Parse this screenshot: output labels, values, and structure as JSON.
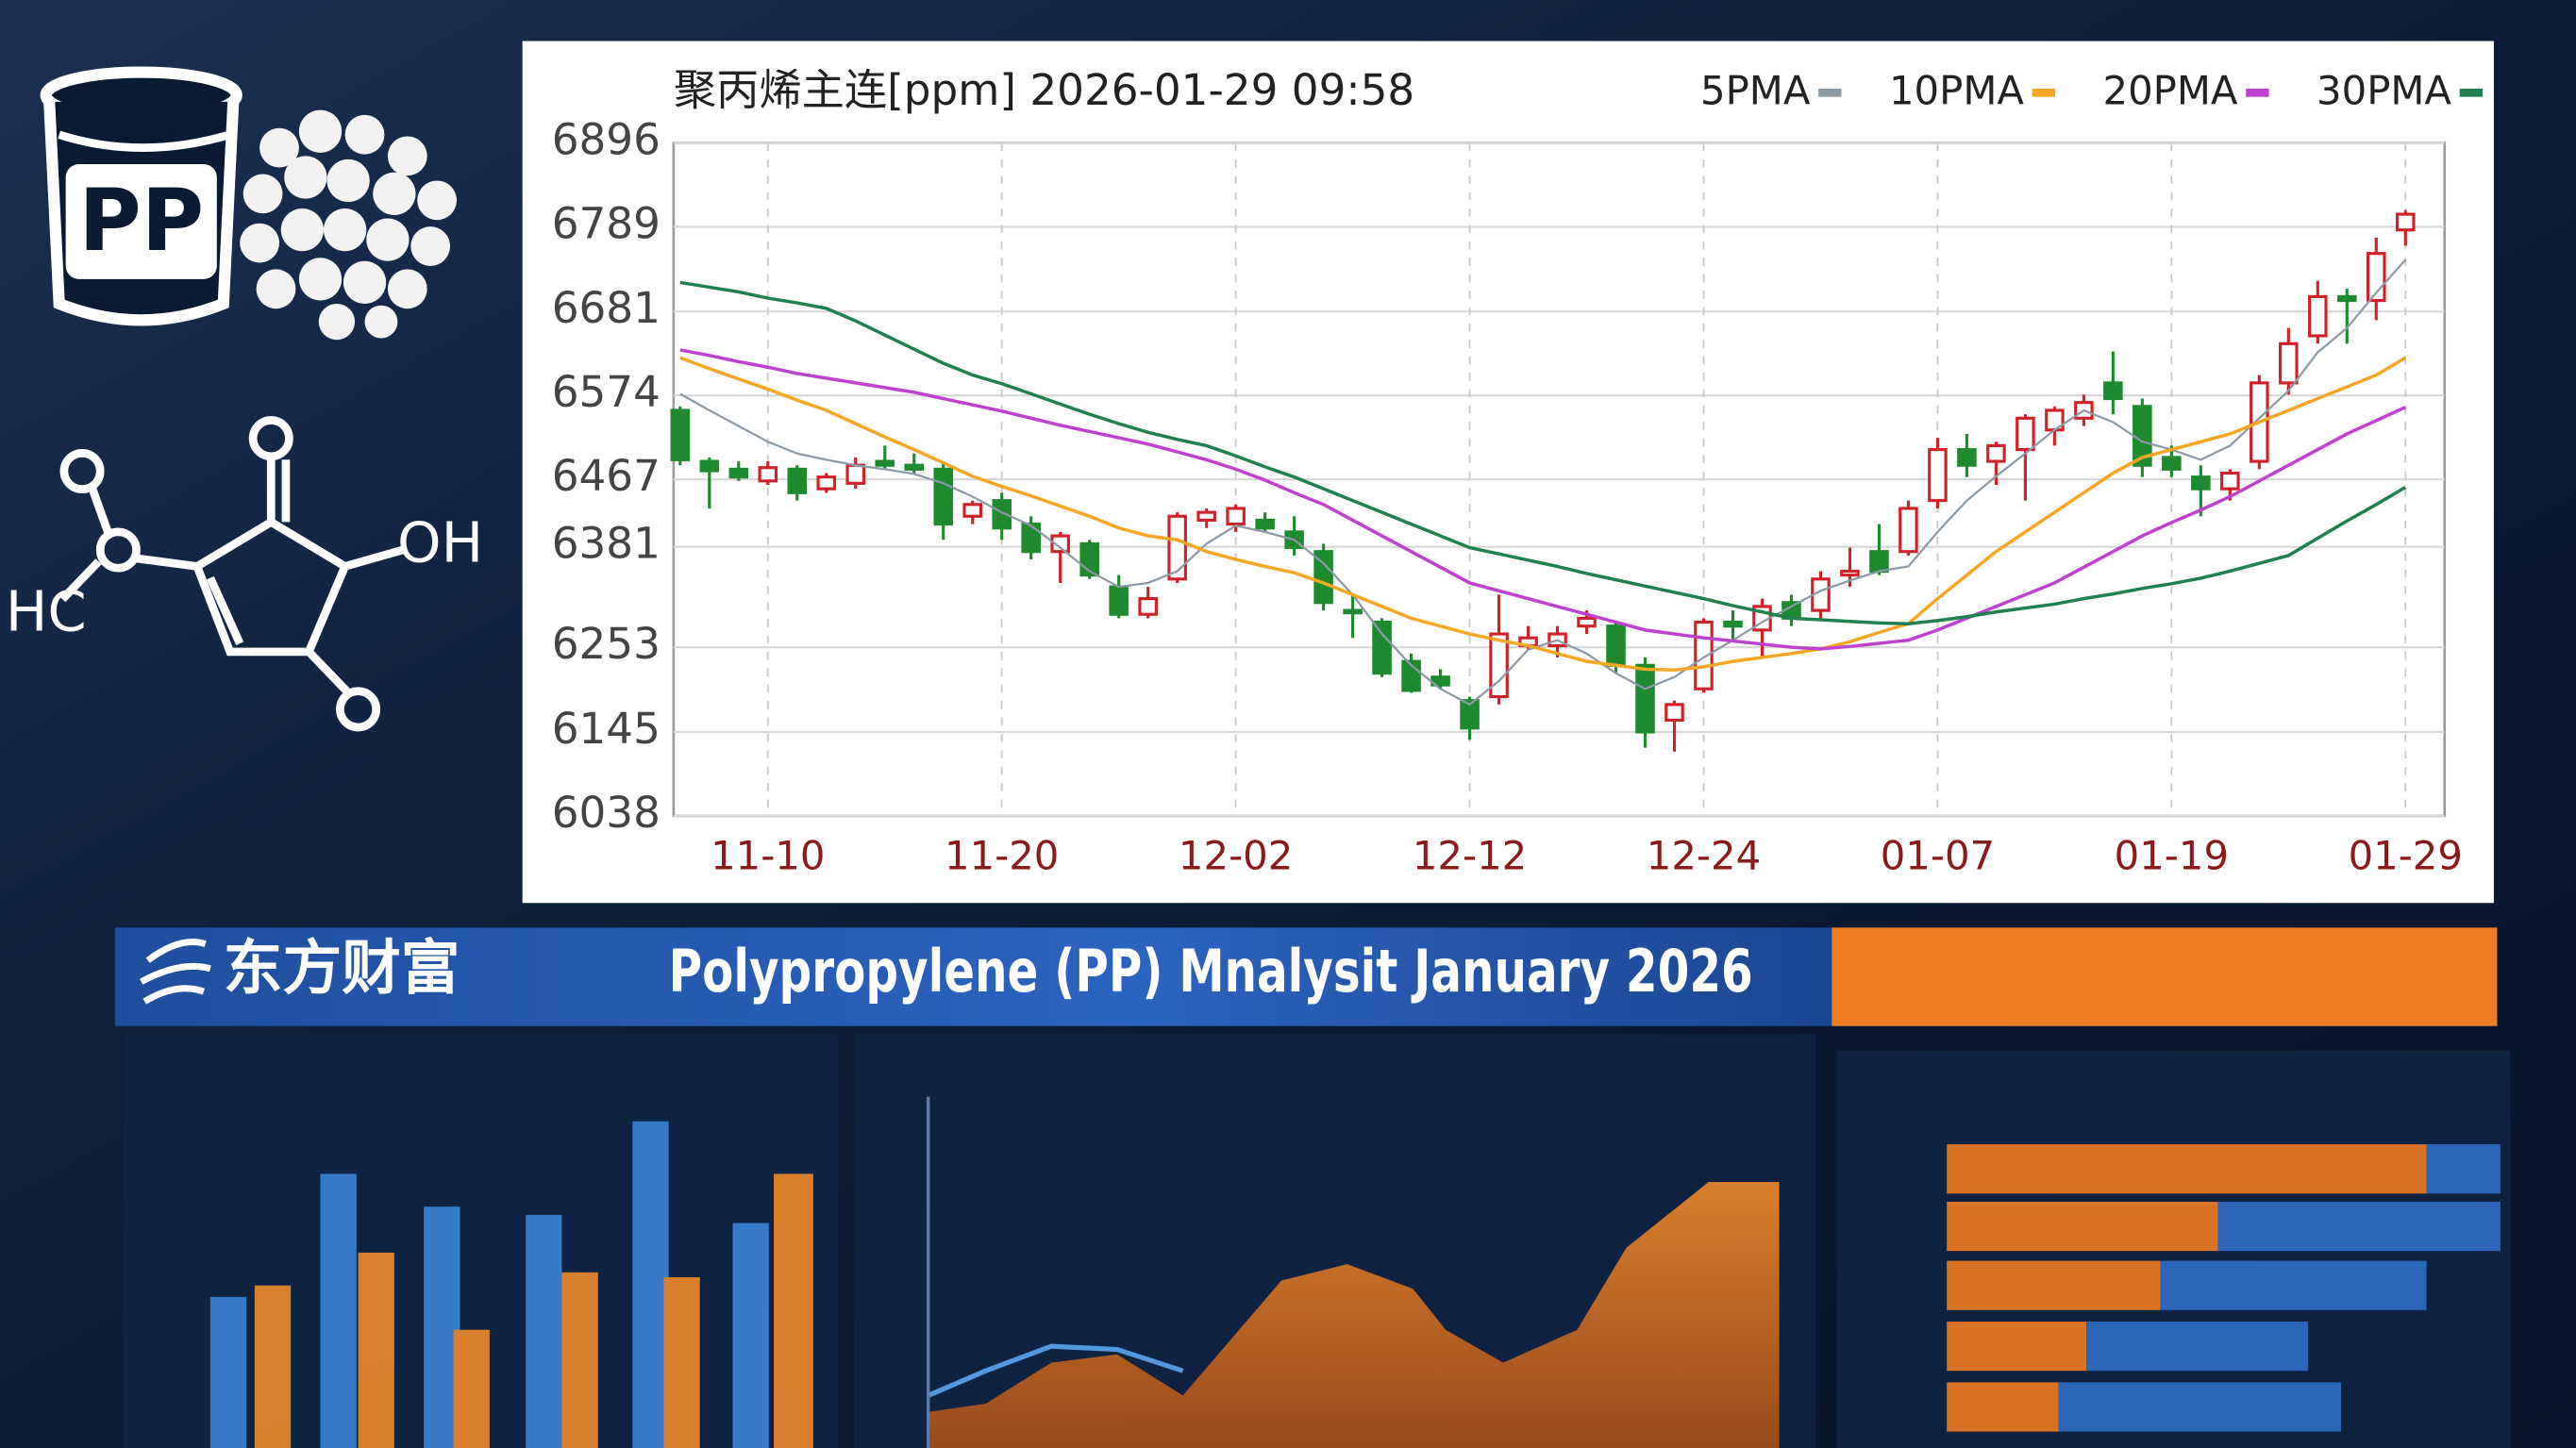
{
  "chart_data": {
    "type": "candlestick",
    "title": "聚丙烯主连[ppm] 2026-01-29 09:58",
    "categories": [
      null,
      null,
      null,
      "11-10",
      null,
      null,
      null,
      null,
      null,
      null,
      null,
      "11-20",
      null,
      null,
      null,
      null,
      null,
      null,
      null,
      "12-02",
      null,
      null,
      null,
      null,
      null,
      null,
      null,
      "12-12",
      null,
      null,
      null,
      null,
      null,
      null,
      null,
      "12-24",
      null,
      null,
      null,
      null,
      null,
      null,
      null,
      "01-07",
      null,
      null,
      null,
      null,
      null,
      null,
      null,
      "01-19",
      null,
      null,
      null,
      null,
      null,
      null,
      null,
      "01-29"
    ],
    "open": [
      6555,
      6490,
      6480,
      6465,
      6480,
      6455,
      6462,
      6490,
      6485,
      6480,
      6420,
      6440,
      6410,
      6375,
      6385,
      6330,
      6295,
      6340,
      6415,
      6410,
      6415,
      6400,
      6375,
      6300,
      6285,
      6235,
      6215,
      6185,
      6190,
      6255,
      6255,
      6280,
      6280,
      6230,
      6160,
      6200,
      6285,
      6275,
      6310,
      6300,
      6345,
      6375,
      6375,
      6440,
      6505,
      6490,
      6505,
      6530,
      6545,
      6590,
      6560,
      6495,
      6470,
      6455,
      6490,
      6590,
      6650,
      6700,
      6695,
      6785
    ],
    "high": [
      6560,
      6495,
      6490,
      6490,
      6485,
      6475,
      6495,
      6510,
      6500,
      6490,
      6440,
      6450,
      6420,
      6400,
      6390,
      6345,
      6330,
      6425,
      6430,
      6435,
      6425,
      6420,
      6385,
      6320,
      6290,
      6245,
      6225,
      6190,
      6320,
      6280,
      6280,
      6300,
      6285,
      6240,
      6185,
      6290,
      6300,
      6315,
      6320,
      6350,
      6380,
      6410,
      6440,
      6520,
      6525,
      6515,
      6550,
      6560,
      6575,
      6630,
      6570,
      6510,
      6485,
      6480,
      6600,
      6660,
      6720,
      6710,
      6775,
      6810
    ],
    "low": [
      6485,
      6430,
      6465,
      6460,
      6440,
      6450,
      6455,
      6480,
      6475,
      6390,
      6410,
      6390,
      6365,
      6335,
      6340,
      6290,
      6290,
      6335,
      6405,
      6400,
      6400,
      6370,
      6300,
      6265,
      6215,
      6195,
      6200,
      6135,
      6180,
      6250,
      6240,
      6270,
      6220,
      6125,
      6120,
      6195,
      6260,
      6240,
      6280,
      6290,
      6330,
      6345,
      6370,
      6430,
      6470,
      6460,
      6440,
      6510,
      6535,
      6550,
      6470,
      6470,
      6420,
      6440,
      6480,
      6575,
      6640,
      6640,
      6670,
      6765
    ],
    "close": [
      6492,
      6478,
      6470,
      6482,
      6450,
      6470,
      6485,
      6485,
      6480,
      6410,
      6435,
      6405,
      6375,
      6395,
      6345,
      6295,
      6315,
      6420,
      6425,
      6430,
      6405,
      6380,
      6310,
      6298,
      6220,
      6198,
      6205,
      6150,
      6270,
      6265,
      6270,
      6290,
      6230,
      6145,
      6180,
      6285,
      6280,
      6305,
      6290,
      6340,
      6350,
      6350,
      6430,
      6505,
      6485,
      6510,
      6545,
      6555,
      6565,
      6570,
      6485,
      6480,
      6455,
      6475,
      6590,
      6640,
      6700,
      6695,
      6755,
      6805
    ],
    "up_color": "#d0202a",
    "down_color": "#1e8a2e",
    "series": [
      {
        "name": "5PMA",
        "color": "#8c9aa6",
        "values": [
          6576,
          6555,
          6535,
          6515,
          6500,
          6492,
          6485,
          6480,
          6474,
          6462,
          6445,
          6425,
          6408,
          6380,
          6350,
          6330,
          6335,
          6350,
          6385,
          6408,
          6400,
          6390,
          6360,
          6320,
          6270,
          6230,
          6200,
          6180,
          6210,
          6250,
          6262,
          6245,
          6220,
          6200,
          6215,
          6240,
          6262,
          6285,
          6305,
          6325,
          6338,
          6350,
          6356,
          6400,
          6440,
          6471,
          6500,
          6530,
          6555,
          6540,
          6515,
          6505,
          6492,
          6510,
          6545,
          6580,
          6629,
          6660,
          6705,
          6747
        ]
      },
      {
        "name": "10PMA",
        "color": "#f5a623",
        "values": [
          6622,
          6608,
          6595,
          6582,
          6568,
          6555,
          6538,
          6521,
          6505,
          6488,
          6471,
          6458,
          6446,
          6433,
          6420,
          6405,
          6395,
          6390,
          6375,
          6365,
          6356,
          6348,
          6335,
          6320,
          6305,
          6290,
          6280,
          6270,
          6262,
          6255,
          6245,
          6235,
          6230,
          6225,
          6224,
          6228,
          6235,
          6240,
          6245,
          6251,
          6260,
          6272,
          6283,
          6315,
          6345,
          6375,
          6400,
          6425,
          6450,
          6475,
          6495,
          6505,
          6515,
          6525,
          6540,
          6555,
          6570,
          6585,
          6600,
          6622
        ]
      },
      {
        "name": "20PMA",
        "color": "#c040d0",
        "values": [
          6632,
          6625,
          6617,
          6610,
          6602,
          6596,
          6590,
          6584,
          6578,
          6570,
          6562,
          6554,
          6545,
          6536,
          6528,
          6520,
          6512,
          6502,
          6492,
          6480,
          6466,
          6450,
          6435,
          6415,
          6395,
          6375,
          6355,
          6335,
          6325,
          6315,
          6305,
          6295,
          6285,
          6275,
          6270,
          6265,
          6261,
          6257,
          6253,
          6251,
          6254,
          6258,
          6262,
          6275,
          6290,
          6305,
          6320,
          6335,
          6355,
          6375,
          6395,
          6412,
          6428,
          6445,
          6465,
          6485,
          6505,
          6525,
          6542,
          6559
        ]
      },
      {
        "name": "30PMA",
        "color": "#1f8050",
        "values": [
          6718,
          6712,
          6706,
          6698,
          6692,
          6685,
          6669,
          6651,
          6633,
          6615,
          6600,
          6589,
          6576,
          6563,
          6550,
          6538,
          6527,
          6518,
          6510,
          6497,
          6483,
          6470,
          6455,
          6440,
          6425,
          6410,
          6395,
          6380,
          6372,
          6364,
          6356,
          6347,
          6339,
          6331,
          6323,
          6315,
          6306,
          6298,
          6290,
          6288,
          6286,
          6284,
          6283,
          6287,
          6292,
          6298,
          6303,
          6308,
          6315,
          6321,
          6328,
          6334,
          6341,
          6350,
          6360,
          6370,
          6392,
          6414,
          6435,
          6457
        ]
      }
    ],
    "ylim": [
      6038,
      6896
    ],
    "yticks": [
      6038,
      6145,
      6253,
      6381,
      6467,
      6574,
      6681,
      6789,
      6896
    ],
    "grid": true
  },
  "banner": {
    "logo": "东方财富",
    "title": "Polypropylene (PP) Mnalysit January 2026"
  },
  "icons": {
    "can_label": "PP",
    "molecule_labels": [
      "OH",
      "HC"
    ]
  }
}
